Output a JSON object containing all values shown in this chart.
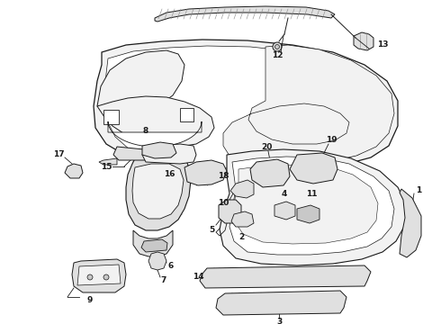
{
  "bg_color": "#ffffff",
  "line_color": "#1a1a1a",
  "figsize": [
    4.9,
    3.6
  ],
  "dpi": 100,
  "light_fill": "#f2f2f2",
  "med_fill": "#e0e0e0",
  "dark_fill": "#c8c8c8"
}
